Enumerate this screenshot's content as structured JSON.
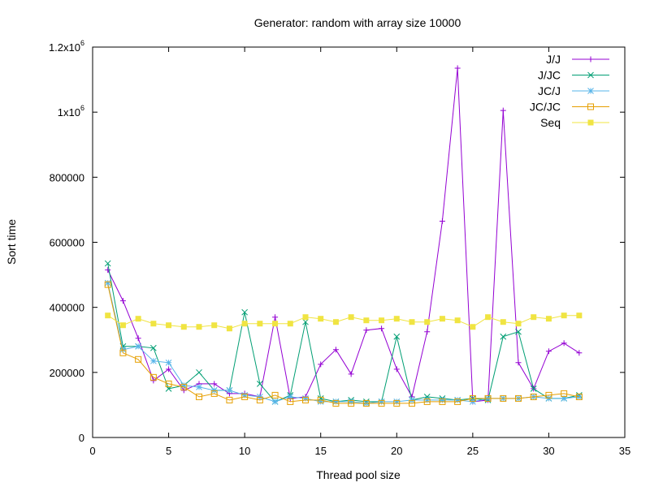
{
  "chart_data": {
    "type": "line",
    "title": "Generator: random with array size 10000",
    "xlabel": "Thread pool size",
    "ylabel": "Sort time",
    "xlim": [
      0,
      35
    ],
    "ylim": [
      0,
      1200000
    ],
    "x_ticks": [
      0,
      5,
      10,
      15,
      20,
      25,
      30,
      35
    ],
    "x_tick_labels": [
      "0",
      "5",
      "10",
      "15",
      "20",
      "25",
      "30",
      "35"
    ],
    "y_ticks": [
      {
        "value": 0,
        "label": "0",
        "exp": ""
      },
      {
        "value": 200000,
        "label": "200000",
        "exp": ""
      },
      {
        "value": 400000,
        "label": "400000",
        "exp": ""
      },
      {
        "value": 600000,
        "label": "600000",
        "exp": ""
      },
      {
        "value": 800000,
        "label": "800000",
        "exp": ""
      },
      {
        "value": 1000000,
        "label": "1x10",
        "exp": "6"
      },
      {
        "value": 1200000,
        "label": "1.2x10",
        "exp": "6"
      }
    ],
    "grid": false,
    "legend_position": "top-right",
    "x": [
      1,
      2,
      3,
      4,
      5,
      6,
      7,
      8,
      9,
      10,
      11,
      12,
      13,
      14,
      15,
      16,
      17,
      18,
      19,
      20,
      21,
      22,
      23,
      24,
      25,
      26,
      27,
      28,
      29,
      30,
      31,
      32
    ],
    "series": [
      {
        "name": "J/J",
        "color": "#9400d3",
        "marker": "plus",
        "values": [
          515000,
          420000,
          305000,
          175000,
          210000,
          145000,
          165000,
          165000,
          135000,
          135000,
          125000,
          370000,
          120000,
          125000,
          225000,
          270000,
          195000,
          330000,
          335000,
          210000,
          125000,
          325000,
          665000,
          1135000,
          110000,
          115000,
          1005000,
          230000,
          150000,
          265000,
          290000,
          260000
        ]
      },
      {
        "name": "J/JC",
        "color": "#009e73",
        "marker": "x",
        "values": [
          535000,
          280000,
          280000,
          275000,
          150000,
          160000,
          200000,
          145000,
          145000,
          385000,
          165000,
          110000,
          130000,
          355000,
          120000,
          110000,
          115000,
          110000,
          110000,
          310000,
          115000,
          125000,
          120000,
          115000,
          120000,
          115000,
          310000,
          325000,
          150000,
          120000,
          120000,
          130000
        ]
      },
      {
        "name": "JC/J",
        "color": "#56b4e9",
        "marker": "star",
        "values": [
          475000,
          270000,
          280000,
          235000,
          230000,
          160000,
          155000,
          145000,
          145000,
          130000,
          125000,
          110000,
          125000,
          120000,
          110000,
          110000,
          110000,
          105000,
          110000,
          110000,
          115000,
          115000,
          115000,
          115000,
          110000,
          120000,
          120000,
          120000,
          125000,
          120000,
          120000,
          125000
        ]
      },
      {
        "name": "JC/JC",
        "color": "#e69f00",
        "marker": "square-open",
        "values": [
          470000,
          260000,
          240000,
          185000,
          165000,
          155000,
          125000,
          135000,
          115000,
          125000,
          115000,
          130000,
          110000,
          115000,
          115000,
          105000,
          105000,
          105000,
          105000,
          105000,
          105000,
          110000,
          110000,
          110000,
          120000,
          120000,
          120000,
          120000,
          125000,
          130000,
          135000,
          125000
        ]
      },
      {
        "name": "Seq",
        "color": "#f0e442",
        "marker": "square-filled",
        "values": [
          375000,
          345000,
          365000,
          350000,
          345000,
          340000,
          340000,
          345000,
          335000,
          350000,
          350000,
          350000,
          350000,
          370000,
          365000,
          355000,
          370000,
          360000,
          360000,
          365000,
          355000,
          355000,
          365000,
          360000,
          340000,
          370000,
          355000,
          350000,
          370000,
          365000,
          375000,
          375000
        ]
      }
    ]
  }
}
